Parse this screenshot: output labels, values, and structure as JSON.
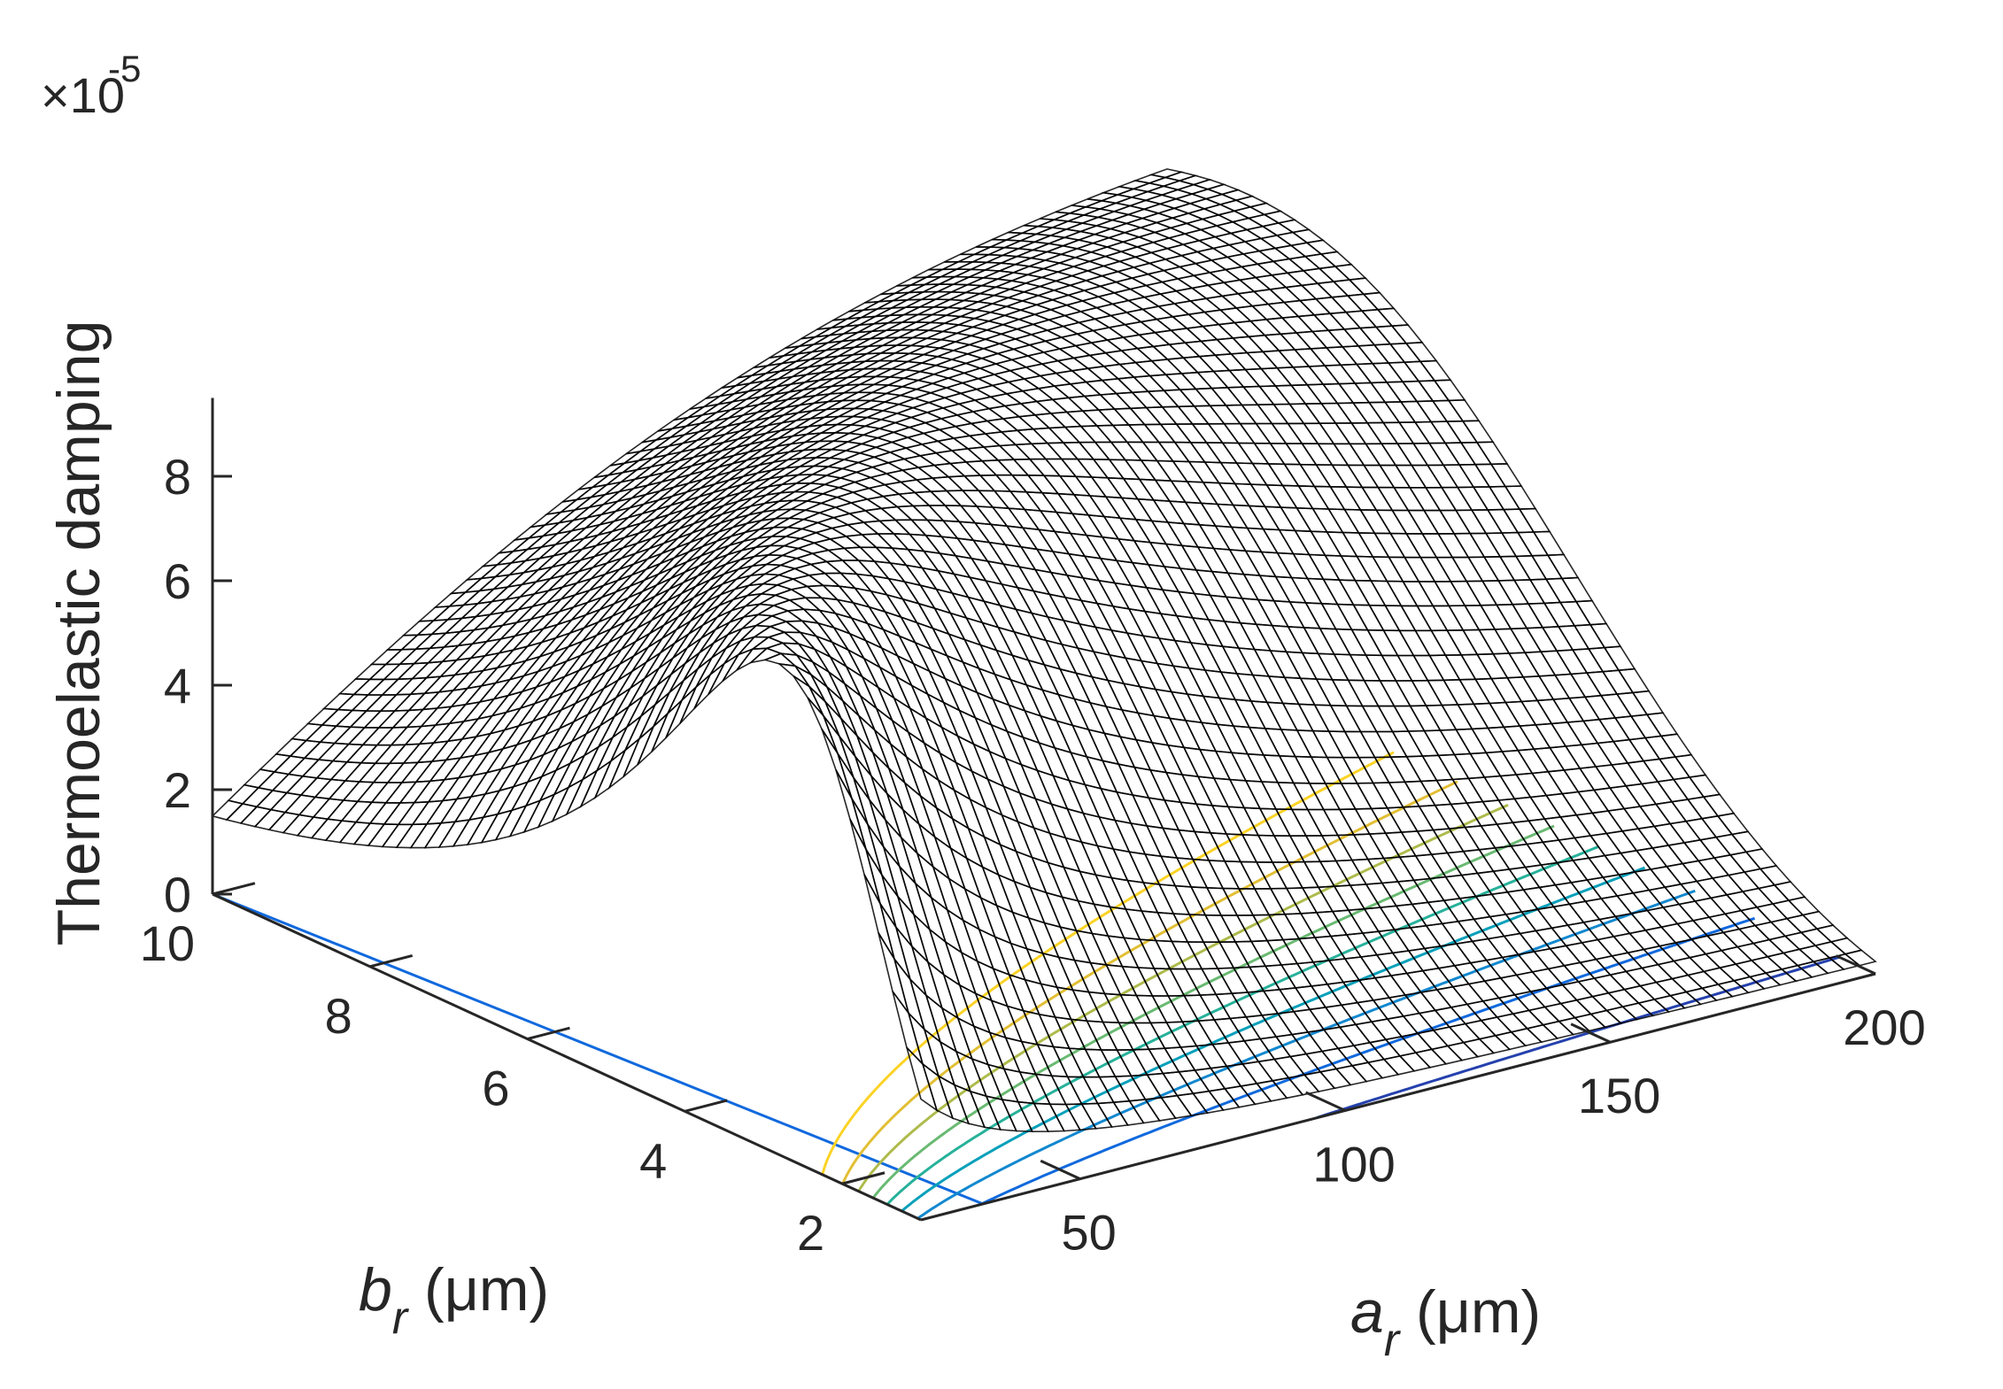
{
  "chart_data": {
    "type": "surface",
    "zlabel": "Thermoelastic damping",
    "z_exponent_label": "×10",
    "z_exponent": "-5",
    "xlabel_base": "a",
    "xlabel_sub": "r",
    "xlabel_unit": " (μm)",
    "ylabel_base": "b",
    "ylabel_sub": "r",
    "ylabel_unit": " (μm)",
    "x_ticks": [
      "50",
      "100",
      "150",
      "200"
    ],
    "y_ticks": [
      "2",
      "4",
      "6",
      "8",
      "10"
    ],
    "z_ticks": [
      "0",
      "2",
      "4",
      "6",
      "8"
    ],
    "xlim": [
      20,
      200
    ],
    "ylim": [
      1,
      10
    ],
    "zlim": [
      0,
      9.5
    ],
    "z_scale": 1e-05,
    "colormap": "parula",
    "peak": {
      "a_um": 20,
      "b_um": 8,
      "value": 9.4
    },
    "contours_on_base": true
  }
}
